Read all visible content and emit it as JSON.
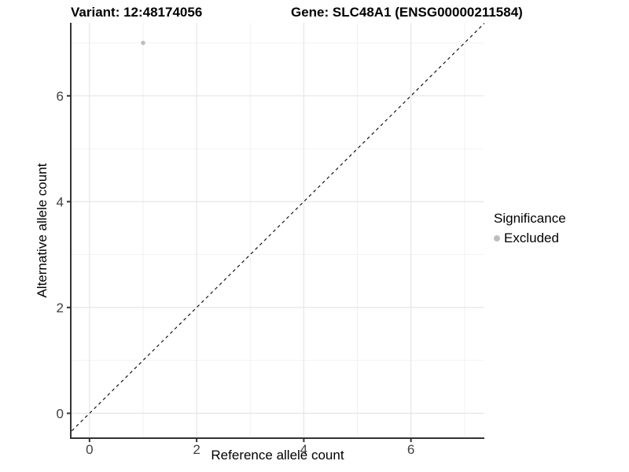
{
  "figure": {
    "title_variant": "Variant: 12:48174056",
    "title_gene": "Gene: SLC48A1 (ENSG00000211584)"
  },
  "chart_data": {
    "type": "scatter",
    "titles": [
      "Variant: 12:48174056",
      "Gene: SLC48A1 (ENSG00000211584)"
    ],
    "xlabel": "Reference allele count",
    "ylabel": "Alternative allele count",
    "xlim": [
      -0.35,
      7.37
    ],
    "ylim": [
      -0.47,
      7.38
    ],
    "x_major_ticks": [
      0,
      2,
      4,
      6
    ],
    "y_major_ticks": [
      0,
      2,
      4,
      6
    ],
    "x_minor_ticks": [
      1,
      3,
      5,
      7
    ],
    "y_minor_ticks": [
      1,
      3,
      5,
      7
    ],
    "grid": "major and minor gridlines on white background",
    "points": [
      {
        "x": 1,
        "y": 7,
        "significance": "Excluded"
      }
    ],
    "identity_line": {
      "equation": "y = x",
      "style": "dashed",
      "color": "#000000"
    },
    "legend": {
      "title": "Significance",
      "position": "right",
      "items": [
        {
          "label": "Excluded",
          "color": "#bebebe"
        }
      ]
    },
    "colors": {
      "point": "#bebebe",
      "grid_major": "#e6e6e6",
      "grid_minor": "#f0f0f0",
      "axis_line": "#333333",
      "tick_text": "#404040",
      "title_text": "#000000",
      "background": "#ffffff"
    }
  }
}
